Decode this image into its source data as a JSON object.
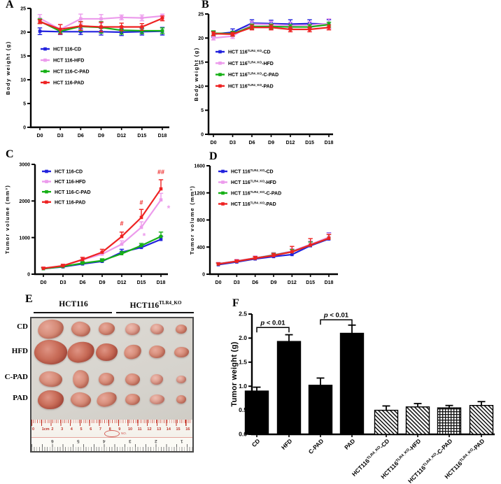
{
  "figure": {
    "background": "#ffffff"
  },
  "panel_labels": {
    "A": "A",
    "B": "B",
    "C": "C",
    "D": "D",
    "E": "E",
    "F": "F"
  },
  "colors": {
    "blue": "#2222dd",
    "violet": "#ec9bec",
    "green": "#16b016",
    "red": "#ee2222",
    "black": "#000000"
  },
  "chart_data": [
    {
      "id": "A",
      "type": "line",
      "title": "",
      "xlabel": "",
      "ylabel": "Body weight (g)",
      "ylim": [
        0,
        25
      ],
      "yticks": [
        0,
        5,
        10,
        15,
        20,
        25
      ],
      "legend_position": "inside-left",
      "categories": [
        "D0",
        "D3",
        "D6",
        "D9",
        "D12",
        "D15",
        "D18"
      ],
      "series": [
        {
          "name": "HCT 116-CD",
          "color": "blue",
          "values": [
            20.2,
            20.1,
            20.1,
            20.1,
            20.0,
            20.1,
            20.2
          ],
          "errors": [
            0.7,
            0.6,
            0.6,
            0.7,
            0.7,
            0.7,
            0.8
          ]
        },
        {
          "name": "HCT 116-HFD",
          "color": "violet",
          "values": [
            22.9,
            20.6,
            22.8,
            22.8,
            23.1,
            23.0,
            23.4
          ],
          "errors": [
            0.8,
            1.0,
            1.0,
            0.9,
            0.5,
            0.6,
            0.4
          ]
        },
        {
          "name": "HCT 116-C-PAD",
          "color": "green",
          "values": [
            22.3,
            20.2,
            21.2,
            21.0,
            20.4,
            20.3,
            20.3
          ],
          "errors": [
            0.5,
            0.5,
            1.0,
            1.2,
            0.8,
            0.6,
            0.6
          ]
        },
        {
          "name": "HCT 116-PAD",
          "color": "red",
          "values": [
            22.2,
            20.6,
            21.3,
            21.1,
            21.1,
            21.1,
            22.9
          ],
          "errors": [
            0.4,
            1.0,
            0.9,
            1.0,
            0.8,
            0.7,
            0.5
          ]
        }
      ]
    },
    {
      "id": "B",
      "type": "line",
      "title": "",
      "xlabel": "",
      "ylabel": "Body weight (g)",
      "ylim": [
        0,
        25
      ],
      "yticks": [
        0,
        5,
        10,
        15,
        20,
        25
      ],
      "legend_position": "inside-left",
      "categories": [
        "D0",
        "D3",
        "D6",
        "D9",
        "D12",
        "D15",
        "D18"
      ],
      "series": [
        {
          "name": "HCT 116^TLR4_KO^-CD",
          "color": "blue",
          "values": [
            20.8,
            21.2,
            23.1,
            23.0,
            22.9,
            23.0,
            22.9
          ],
          "errors": [
            0.6,
            0.7,
            0.7,
            0.7,
            0.9,
            0.8,
            0.9
          ]
        },
        {
          "name": "HCT 116^TLR4_KO^-HFD",
          "color": "violet",
          "values": [
            20.0,
            20.4,
            22.9,
            22.8,
            22.6,
            22.7,
            23.0
          ],
          "errors": [
            0.4,
            0.5,
            0.6,
            0.7,
            0.7,
            0.7,
            1.0
          ]
        },
        {
          "name": "HCT 116^TLR4_KO^-C-PAD",
          "color": "green",
          "values": [
            21.0,
            20.9,
            22.4,
            22.4,
            22.3,
            22.3,
            22.8
          ],
          "errors": [
            0.5,
            0.5,
            0.5,
            0.5,
            0.5,
            0.5,
            0.5
          ]
        },
        {
          "name": "HCT 116^TLR4_KO^-PAD",
          "color": "red",
          "values": [
            20.9,
            20.8,
            22.2,
            22.2,
            21.8,
            21.8,
            22.2
          ],
          "errors": [
            0.4,
            0.4,
            0.5,
            0.5,
            0.5,
            0.5,
            0.5
          ]
        }
      ]
    },
    {
      "id": "C",
      "type": "line",
      "title": "",
      "xlabel": "",
      "ylabel": "Tumor volume (mm³)",
      "ylim": [
        0,
        3000
      ],
      "yticks": [
        0,
        1000,
        2000,
        3000
      ],
      "legend_position": "inside-top-left",
      "categories": [
        "D0",
        "D3",
        "D6",
        "D9",
        "D12",
        "D15",
        "D18"
      ],
      "series": [
        {
          "name": "HCT 116-CD",
          "color": "blue",
          "values": [
            150,
            200,
            280,
            350,
            600,
            730,
            950
          ],
          "errors": [
            30,
            30,
            40,
            50,
            80,
            60,
            80
          ]
        },
        {
          "name": "HCT 116-HFD",
          "color": "violet",
          "values": [
            160,
            230,
            390,
            550,
            820,
            1280,
            2030
          ],
          "errors": [
            30,
            40,
            60,
            70,
            90,
            150,
            180
          ]
        },
        {
          "name": "HCT 116-C-PAD",
          "color": "green",
          "values": [
            150,
            210,
            300,
            370,
            560,
            780,
            1030
          ],
          "errors": [
            20,
            30,
            40,
            50,
            60,
            60,
            120
          ]
        },
        {
          "name": "HCT 116-PAD",
          "color": "red",
          "values": [
            160,
            230,
            400,
            600,
            1030,
            1550,
            2330
          ],
          "errors": [
            30,
            40,
            60,
            80,
            120,
            220,
            250
          ]
        }
      ],
      "annotations": [
        {
          "x": 4,
          "v": 1330,
          "text": "#",
          "color": "red"
        },
        {
          "x": 5,
          "v": 1900,
          "text": "#",
          "color": "red"
        },
        {
          "x": 6,
          "v": 2730,
          "text": "##",
          "color": "red"
        },
        {
          "x": 5,
          "v": 1040,
          "text": "*",
          "color": "violet",
          "dx": 4
        },
        {
          "x": 6,
          "v": 1800,
          "text": "*",
          "color": "violet",
          "dx": 11
        }
      ]
    },
    {
      "id": "D",
      "type": "line",
      "title": "",
      "xlabel": "",
      "ylabel": "Tumor volume (mm³)",
      "ylim": [
        0,
        1600
      ],
      "yticks": [
        0,
        400,
        800,
        1200,
        1600
      ],
      "legend_position": "inside-top-left",
      "categories": [
        "D0",
        "D3",
        "D6",
        "D9",
        "D12",
        "D15",
        "D18"
      ],
      "series": [
        {
          "name": "HCT 116^TLR4_KO^-CD",
          "color": "blue",
          "values": [
            140,
            180,
            225,
            260,
            290,
            420,
            520
          ],
          "errors": [
            25,
            30,
            35,
            40,
            45,
            60,
            90
          ]
        },
        {
          "name": "HCT 116^TLR4_KO^-HFD",
          "color": "violet",
          "values": [
            155,
            195,
            240,
            285,
            340,
            440,
            545
          ],
          "errors": [
            20,
            25,
            30,
            35,
            40,
            50,
            60
          ]
        },
        {
          "name": "HCT 116^TLR4_KO^-C-PAD",
          "color": "green",
          "values": [
            150,
            190,
            235,
            280,
            330,
            430,
            530
          ],
          "errors": [
            15,
            20,
            25,
            30,
            35,
            45,
            55
          ]
        },
        {
          "name": "HCT 116^TLR4_KO^-PAD",
          "color": "red",
          "values": [
            150,
            190,
            235,
            275,
            330,
            430,
            530
          ],
          "errors": [
            15,
            20,
            25,
            30,
            80,
            95,
            55
          ]
        }
      ]
    },
    {
      "id": "F",
      "type": "bar",
      "title": "",
      "xlabel": "",
      "ylabel": "Tumor weight (g)",
      "ylim": [
        0,
        2.5
      ],
      "yticks": [
        "0.0",
        "0.5",
        "1.0",
        "1.5",
        "2.0",
        "2.5"
      ],
      "categories": [
        "CD",
        "HFD",
        "C-PAD",
        "PAD",
        "HCT116^TLR4_KO^-CD",
        "HCT116^TLR4_KO^-HFD",
        "HCT116^TLR4_KO^-C-PAD",
        "HCT116^TLR4_KO^-PAD"
      ],
      "values": [
        0.9,
        1.93,
        1.02,
        2.1,
        0.5,
        0.57,
        0.55,
        0.6
      ],
      "errors": [
        0.08,
        0.14,
        0.15,
        0.17,
        0.09,
        0.07,
        0.05,
        0.08
      ],
      "fills": [
        "solid",
        "solid",
        "solid",
        "solid",
        "diag",
        "diag",
        "grid",
        "diag"
      ],
      "brackets": [
        {
          "from": 0,
          "to": 1,
          "v": 2.22,
          "label": "p < 0.01"
        },
        {
          "from": 2,
          "to": 3,
          "v": 2.38,
          "label": "p < 0.01"
        }
      ]
    }
  ],
  "photo_panel": {
    "headers": [
      "HCT116",
      "HCT116^TLR4_KO^"
    ],
    "row_labels": [
      "CD",
      "HFD",
      "C-PAD",
      "PAD"
    ],
    "tumors": [
      [
        [
          37,
          27,
          -8,
          1
        ],
        [
          27,
          21,
          12,
          1
        ],
        [
          23,
          18,
          0,
          1
        ],
        [
          21,
          17,
          0,
          0
        ],
        [
          19,
          15,
          8,
          0
        ],
        [
          16,
          13,
          0,
          1
        ]
      ],
      [
        [
          47,
          35,
          5,
          2
        ],
        [
          39,
          29,
          -12,
          2
        ],
        [
          31,
          25,
          0,
          2
        ],
        [
          25,
          20,
          -15,
          1
        ],
        [
          23,
          18,
          0,
          1
        ],
        [
          21,
          15,
          0,
          1
        ]
      ],
      [
        [
          33,
          22,
          8,
          1
        ],
        [
          23,
          26,
          -10,
          1
        ],
        [
          22,
          18,
          0,
          1
        ],
        [
          21,
          17,
          6,
          1
        ],
        [
          18,
          15,
          0,
          0
        ],
        [
          14,
          11,
          0,
          0
        ]
      ],
      [
        [
          37,
          27,
          0,
          2
        ],
        [
          29,
          21,
          10,
          1
        ],
        [
          29,
          20,
          -14,
          1
        ],
        [
          21,
          16,
          0,
          1
        ],
        [
          21,
          14,
          0,
          0
        ],
        [
          14,
          12,
          0,
          1
        ]
      ]
    ],
    "ruler": {
      "cm_numbers": [
        "0",
        "1cm",
        "2",
        "3",
        "4",
        "5",
        "6",
        "7",
        "8",
        "9",
        "10",
        "11",
        "12",
        "13",
        "14",
        "15",
        "16"
      ],
      "inch_numbers": [
        "6",
        "5",
        "4",
        "3",
        "2",
        "1"
      ],
      "stamp": "NO."
    }
  }
}
